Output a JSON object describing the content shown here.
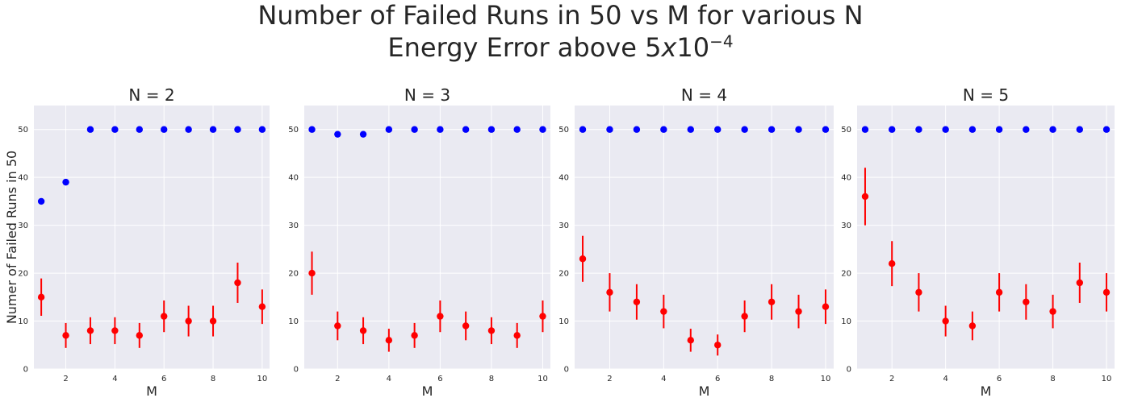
{
  "figure": {
    "title_line1": "Number of Failed Runs in 50 vs M for various N",
    "title_line2_prefix": "Energy Error above 5",
    "title_line2_x": "x",
    "title_line2_base": "10",
    "title_line2_exp": "−4",
    "background": "#eaeaf2",
    "grid_color": "#ffffff",
    "colors": {
      "total": "#0000ff",
      "mean": "#ff0000"
    }
  },
  "chart_data": [
    {
      "type": "scatter",
      "title": "N = 2",
      "xlabel": "M",
      "ylabel": "Numer of Failed Runs in 50",
      "xlim": [
        0.7,
        10.3
      ],
      "ylim": [
        0,
        55
      ],
      "xticks": [
        2,
        4,
        6,
        8,
        10
      ],
      "yticks": [
        0,
        10,
        20,
        30,
        40,
        50
      ],
      "grid": true,
      "series": [
        {
          "color": "#0000ff",
          "x": [
            1,
            2,
            3,
            4,
            5,
            6,
            7,
            8,
            9,
            10
          ],
          "y": [
            35,
            39,
            50,
            50,
            50,
            50,
            50,
            50,
            50,
            50
          ]
        },
        {
          "color": "#ff0000",
          "x": [
            1,
            2,
            3,
            4,
            5,
            6,
            7,
            8,
            9,
            10
          ],
          "y": [
            15,
            7,
            8,
            8,
            7,
            11,
            10,
            10,
            18,
            13
          ],
          "yerr": [
            3.9,
            2.6,
            2.8,
            2.8,
            2.6,
            3.3,
            3.2,
            3.2,
            4.2,
            3.6
          ]
        }
      ]
    },
    {
      "type": "scatter",
      "title": "N = 3",
      "xlabel": "M",
      "ylabel": "",
      "xlim": [
        0.7,
        10.3
      ],
      "ylim": [
        0,
        55
      ],
      "xticks": [
        2,
        4,
        6,
        8,
        10
      ],
      "yticks": [
        0,
        10,
        20,
        30,
        40,
        50
      ],
      "grid": true,
      "series": [
        {
          "color": "#0000ff",
          "x": [
            1,
            2,
            3,
            4,
            5,
            6,
            7,
            8,
            9,
            10
          ],
          "y": [
            50,
            49,
            49,
            50,
            50,
            50,
            50,
            50,
            50,
            50
          ]
        },
        {
          "color": "#ff0000",
          "x": [
            1,
            2,
            3,
            4,
            5,
            6,
            7,
            8,
            9,
            10
          ],
          "y": [
            20,
            9,
            8,
            6,
            7,
            11,
            9,
            8,
            7,
            11
          ],
          "yerr": [
            4.5,
            3.0,
            2.8,
            2.4,
            2.6,
            3.3,
            3.0,
            2.8,
            2.6,
            3.3
          ]
        }
      ]
    },
    {
      "type": "scatter",
      "title": "N = 4",
      "xlabel": "M",
      "ylabel": "",
      "xlim": [
        0.7,
        10.3
      ],
      "ylim": [
        0,
        55
      ],
      "xticks": [
        2,
        4,
        6,
        8,
        10
      ],
      "yticks": [
        0,
        10,
        20,
        30,
        40,
        50
      ],
      "grid": true,
      "series": [
        {
          "color": "#0000ff",
          "x": [
            1,
            2,
            3,
            4,
            5,
            6,
            7,
            8,
            9,
            10
          ],
          "y": [
            50,
            50,
            50,
            50,
            50,
            50,
            50,
            50,
            50,
            50
          ]
        },
        {
          "color": "#ff0000",
          "x": [
            1,
            2,
            3,
            4,
            5,
            6,
            7,
            8,
            9,
            10
          ],
          "y": [
            23,
            16,
            14,
            12,
            6,
            5,
            11,
            14,
            12,
            13
          ],
          "yerr": [
            4.8,
            4.0,
            3.7,
            3.5,
            2.4,
            2.2,
            3.3,
            3.7,
            3.5,
            3.6
          ]
        }
      ]
    },
    {
      "type": "scatter",
      "title": "N = 5",
      "xlabel": "M",
      "ylabel": "",
      "xlim": [
        0.7,
        10.3
      ],
      "ylim": [
        0,
        55
      ],
      "xticks": [
        2,
        4,
        6,
        8,
        10
      ],
      "yticks": [
        0,
        10,
        20,
        30,
        40,
        50
      ],
      "grid": true,
      "series": [
        {
          "color": "#0000ff",
          "x": [
            1,
            2,
            3,
            4,
            5,
            6,
            7,
            8,
            9,
            10
          ],
          "y": [
            50,
            50,
            50,
            50,
            50,
            50,
            50,
            50,
            50,
            50
          ]
        },
        {
          "color": "#ff0000",
          "x": [
            1,
            2,
            3,
            4,
            5,
            6,
            7,
            8,
            9,
            10
          ],
          "y": [
            36,
            22,
            16,
            10,
            9,
            16,
            14,
            12,
            18,
            16
          ],
          "yerr": [
            6.0,
            4.7,
            4.0,
            3.2,
            3.0,
            4.0,
            3.7,
            3.5,
            4.2,
            4.0
          ]
        }
      ]
    }
  ]
}
